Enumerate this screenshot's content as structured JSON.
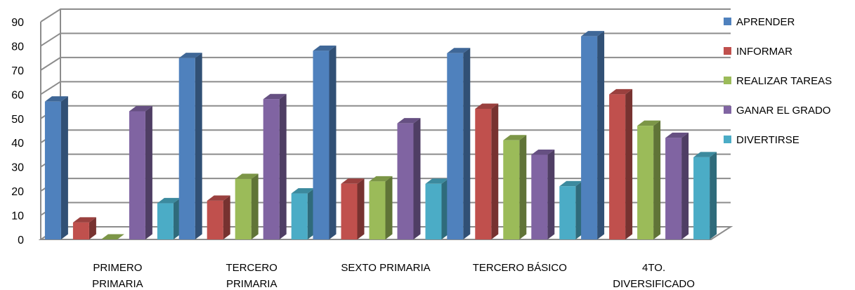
{
  "chart_data": {
    "type": "bar",
    "categories": [
      [
        "PRIMERO",
        "PRIMARIA"
      ],
      [
        "TERCERO",
        "PRIMARIA"
      ],
      [
        "SEXTO PRIMARIA"
      ],
      [
        "TERCERO BÁSICO"
      ],
      [
        "4TO.",
        "DIVERSIFICADO"
      ]
    ],
    "series": [
      {
        "name": "APRENDER",
        "color": "#4F81BD",
        "values": [
          57,
          75,
          78,
          77,
          84
        ]
      },
      {
        "name": "INFORMAR",
        "color": "#C0504D",
        "values": [
          7,
          16,
          23,
          54,
          60
        ]
      },
      {
        "name": "REALIZAR TAREAS",
        "color": "#9BBB59",
        "values": [
          0,
          25,
          24,
          41,
          47
        ]
      },
      {
        "name": "GANAR EL GRADO",
        "color": "#8064A2",
        "values": [
          53,
          58,
          48,
          35,
          42
        ]
      },
      {
        "name": "DIVERTIRSE",
        "color": "#4BACC6",
        "values": [
          15,
          19,
          23,
          22,
          34
        ]
      }
    ],
    "yticks": [
      0,
      10,
      20,
      30,
      40,
      50,
      60,
      70,
      80,
      90
    ],
    "ylim": [
      0,
      90
    ],
    "grid": true,
    "legend_position": "right",
    "style": "3d-clustered-column"
  }
}
